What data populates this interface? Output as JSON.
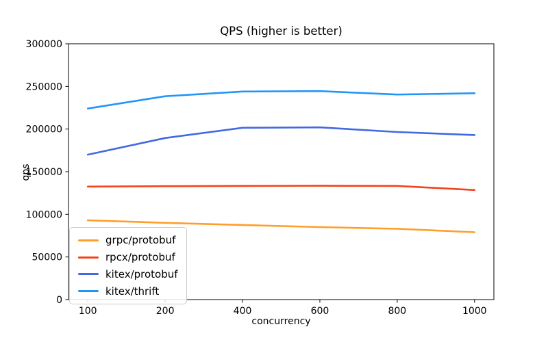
{
  "chart_data": {
    "type": "line",
    "title": "QPS (higher is better)",
    "xlabel": "concurrency",
    "ylabel": "qps",
    "categories": [
      100,
      200,
      400,
      600,
      800,
      1000
    ],
    "x_tick_labels": [
      "100",
      "200",
      "400",
      "600",
      "800",
      "1000"
    ],
    "yticks": [
      0,
      50000,
      100000,
      150000,
      200000,
      250000,
      300000
    ],
    "ylim": [
      0,
      300000
    ],
    "grid": false,
    "legend_position": "lower-left",
    "x_spacing": "even-categorical",
    "series": [
      {
        "name": "grpc/protobuf",
        "color": "#FF9E28",
        "values": [
          93000,
          90000,
          87500,
          85000,
          83000,
          79000
        ]
      },
      {
        "name": "rpcx/protobuf",
        "color": "#F4431A",
        "values": [
          132500,
          133000,
          133300,
          133500,
          133300,
          128500
        ]
      },
      {
        "name": "kitex/protobuf",
        "color": "#4169E1",
        "values": [
          170000,
          189500,
          201500,
          202000,
          196500,
          193000
        ]
      },
      {
        "name": "kitex/thrift",
        "color": "#2196F8",
        "values": [
          224000,
          238500,
          244000,
          244500,
          240500,
          242000
        ]
      }
    ]
  },
  "plot": {
    "axis_color": "#000000",
    "background": "#ffffff"
  }
}
